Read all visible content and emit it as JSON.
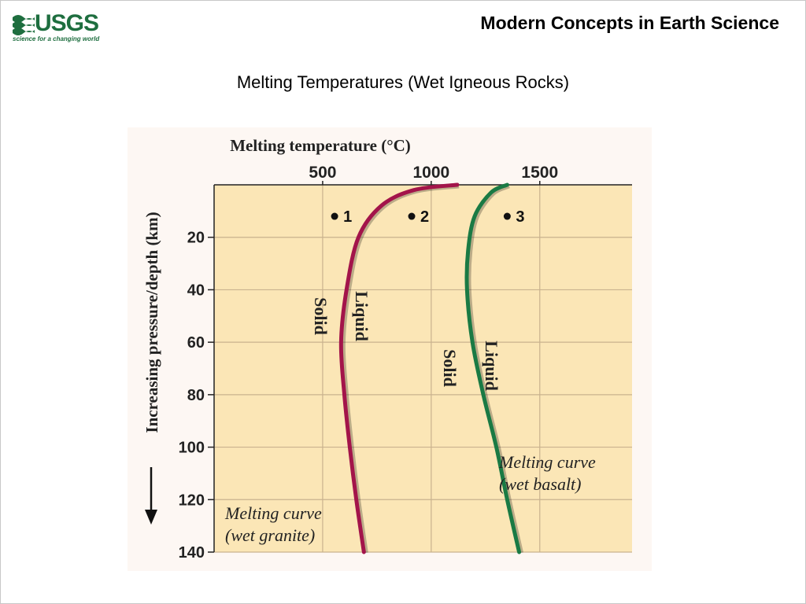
{
  "header": {
    "logo_text": "USGS",
    "logo_tagline": "science for a changing world",
    "title": "Modern Concepts in Earth Science"
  },
  "slide": {
    "title": "Melting Temperatures (Wet Igneous Rocks)"
  },
  "colors": {
    "usgs_green": "#1e6e3f",
    "plot_background": "#fbe6b6",
    "grid": "#c9b28e",
    "granite_curve": "#a3144a",
    "basalt_curve": "#1a7a44"
  },
  "chart_data": {
    "type": "line",
    "title": "Melting temperature (°C)",
    "xlabel": "Melting temperature (°C)",
    "ylabel": "Increasing pressure/depth (km)",
    "xlim": [
      0,
      1925
    ],
    "ylim": [
      0,
      140
    ],
    "y_inverted": true,
    "grid": true,
    "x_ticks": [
      500,
      1000,
      1500
    ],
    "y_ticks": [
      20,
      40,
      60,
      80,
      100,
      120,
      140
    ],
    "series": [
      {
        "name": "Melting curve (wet granite)",
        "label_line1": "Melting curve",
        "label_line2": "(wet granite)",
        "color": "#a3144a",
        "points": [
          {
            "x": 1120,
            "y": 0
          },
          {
            "x": 920,
            "y": 2
          },
          {
            "x": 770,
            "y": 8
          },
          {
            "x": 665,
            "y": 20
          },
          {
            "x": 610,
            "y": 40
          },
          {
            "x": 585,
            "y": 60
          },
          {
            "x": 600,
            "y": 80
          },
          {
            "x": 625,
            "y": 100
          },
          {
            "x": 655,
            "y": 120
          },
          {
            "x": 690,
            "y": 140
          }
        ],
        "solid_label": "Solid",
        "liquid_label": "Liquid"
      },
      {
        "name": "Melting curve (wet basalt)",
        "label_line1": "Melting curve",
        "label_line2": "(wet basalt)",
        "color": "#1a7a44",
        "points": [
          {
            "x": 1350,
            "y": 0
          },
          {
            "x": 1275,
            "y": 3
          },
          {
            "x": 1200,
            "y": 12
          },
          {
            "x": 1170,
            "y": 25
          },
          {
            "x": 1165,
            "y": 40
          },
          {
            "x": 1190,
            "y": 60
          },
          {
            "x": 1240,
            "y": 80
          },
          {
            "x": 1300,
            "y": 100
          },
          {
            "x": 1350,
            "y": 120
          },
          {
            "x": 1405,
            "y": 140
          }
        ],
        "solid_label": "Solid",
        "liquid_label": "Liquid"
      }
    ],
    "points": [
      {
        "label": "1",
        "x": 555,
        "y": 12
      },
      {
        "label": "2",
        "x": 910,
        "y": 12
      },
      {
        "label": "3",
        "x": 1350,
        "y": 12
      }
    ]
  }
}
